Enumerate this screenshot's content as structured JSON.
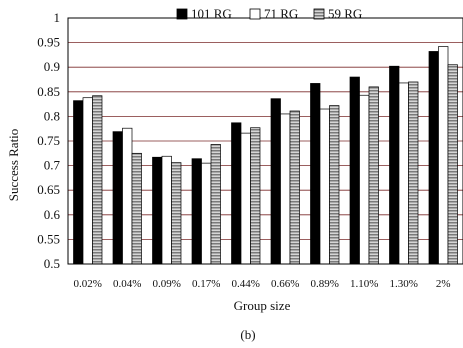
{
  "chart_data": {
    "type": "bar",
    "title": "",
    "xlabel": "Group size",
    "ylabel": "Success Ratio",
    "caption": "(b)",
    "ylim": [
      0.5,
      1.0
    ],
    "yticks": [
      0.5,
      0.55,
      0.6,
      0.65,
      0.7,
      0.75,
      0.8,
      0.85,
      0.9,
      0.95,
      1
    ],
    "ytick_labels": [
      "0.5",
      "0.55",
      "0.6",
      "0.65",
      "0.7",
      "0.75",
      "0.8",
      "0.85",
      "0.9",
      "0.95",
      "1"
    ],
    "grid": "horizontal",
    "legend_position": "top",
    "categories": [
      "0.02%",
      "0.04%",
      "0.09%",
      "0.17%",
      "0.44%",
      "0.66%",
      "0.89%",
      "1.10%",
      "1.30%",
      "2%"
    ],
    "series": [
      {
        "name": "101 RG",
        "color": "#000000",
        "pattern": "solid",
        "values": [
          0.832,
          0.769,
          0.717,
          0.714,
          0.787,
          0.836,
          0.867,
          0.88,
          0.902,
          0.932
        ]
      },
      {
        "name": "71 RG",
        "color": "#ffffff",
        "pattern": "white",
        "values": [
          0.838,
          0.776,
          0.719,
          0.705,
          0.766,
          0.805,
          0.815,
          0.843,
          0.868,
          0.942
        ]
      },
      {
        "name": "59 RG",
        "color": "#9a9a9a",
        "pattern": "striped",
        "values": [
          0.842,
          0.725,
          0.706,
          0.743,
          0.777,
          0.811,
          0.822,
          0.86,
          0.87,
          0.905
        ]
      }
    ]
  }
}
